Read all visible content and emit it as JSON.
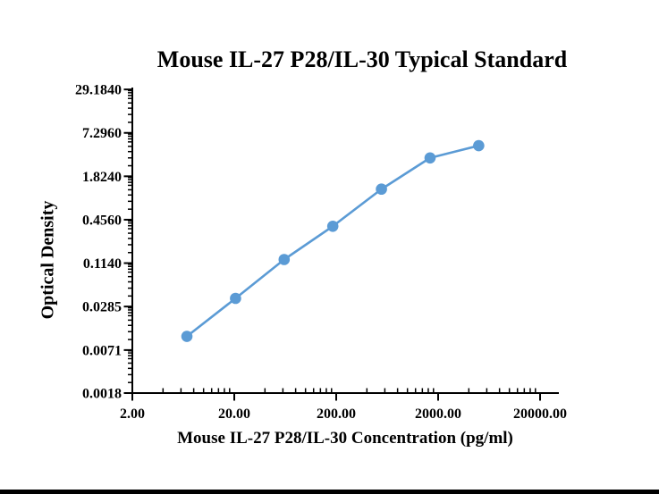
{
  "page": {
    "background_color": "#ffffff",
    "bottom_border_color": "#000000"
  },
  "chart_data": {
    "type": "line",
    "title": "Mouse IL-27 P28/IL-30 Typical Standard",
    "xlabel": "Mouse IL-27 P28/IL-30 Concentration (pg/ml)",
    "ylabel": "Optical Density",
    "x_scale": "log",
    "y_scale": "log",
    "grid": "off",
    "legend": "none",
    "axis_color": "#000000",
    "x_range": [
      2,
      30000
    ],
    "y_range": [
      0.0018,
      29.184
    ],
    "x_ticks": [
      {
        "label": "2.00",
        "value": 2
      },
      {
        "label": "20.00",
        "value": 20
      },
      {
        "label": "200.00",
        "value": 200
      },
      {
        "label": "2000.00",
        "value": 2000
      },
      {
        "label": "20000.00",
        "value": 20000
      }
    ],
    "y_ticks": [
      {
        "label": "29.1840",
        "value": 29.184
      },
      {
        "label": "7.2960",
        "value": 7.296
      },
      {
        "label": "1.8240",
        "value": 1.824
      },
      {
        "label": "0.4560",
        "value": 0.456
      },
      {
        "label": "0.1140",
        "value": 0.114
      },
      {
        "label": "0.0285",
        "value": 0.0285
      },
      {
        "label": "0.0071",
        "value": 0.0071
      },
      {
        "label": "0.0018",
        "value": 0.0018
      }
    ],
    "series": [
      {
        "name": "Typical Standard",
        "color": "#5B9BD5",
        "marker": "circle",
        "points": [
          {
            "x": 6.86,
            "y": 0.011
          },
          {
            "x": 20.58,
            "y": 0.037
          },
          {
            "x": 61.73,
            "y": 0.128
          },
          {
            "x": 185.19,
            "y": 0.37
          },
          {
            "x": 555.56,
            "y": 1.21
          },
          {
            "x": 1666.67,
            "y": 3.28
          },
          {
            "x": 5000,
            "y": 4.85
          }
        ]
      }
    ]
  }
}
